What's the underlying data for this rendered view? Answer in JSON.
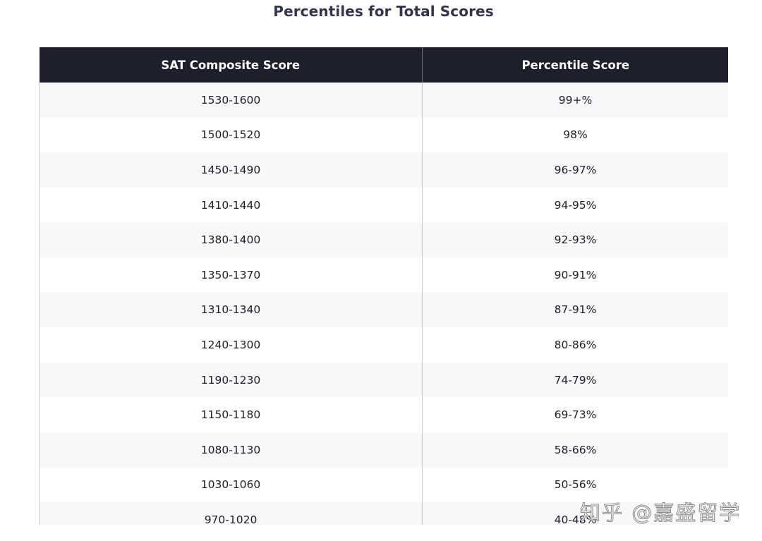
{
  "title": "Percentiles for Total Scores",
  "table": {
    "headers": [
      "SAT Composite Score",
      "Percentile Score"
    ],
    "rows": [
      [
        "1530-1600",
        "99+%"
      ],
      [
        "1500-1520",
        "98%"
      ],
      [
        "1450-1490",
        "96-97%"
      ],
      [
        "1410-1440",
        "94-95%"
      ],
      [
        "1380-1400",
        "92-93%"
      ],
      [
        "1350-1370",
        "90-91%"
      ],
      [
        "1310-1340",
        "87-91%"
      ],
      [
        "1240-1300",
        "80-86%"
      ],
      [
        "1190-1230",
        "74-79%"
      ],
      [
        "1150-1180",
        "69-73%"
      ],
      [
        "1080-1130",
        "58-66%"
      ],
      [
        "1030-1060",
        "50-56%"
      ],
      [
        "970-1020",
        "40-48%"
      ]
    ]
  },
  "watermark": "知乎 @嘉盛留学",
  "colors": {
    "header_bg": "#1d1f2c",
    "header_text": "#ffffff",
    "title_text": "#34344a",
    "row_alt_bg": "#f6f8fa",
    "border": "#c9ccd1"
  }
}
